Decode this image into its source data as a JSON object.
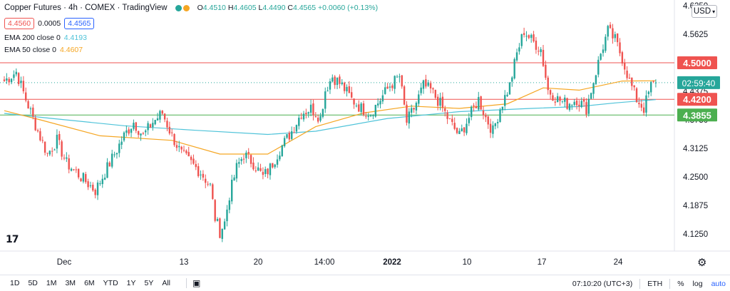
{
  "legend": {
    "symbol_title": "Copper Futures · 4h · COMEX · TradingView",
    "ohlc": {
      "o_label": "O",
      "o": "4.4510",
      "h_label": "H",
      "h": "4.4605",
      "l_label": "L",
      "l": "4.4490",
      "c_label": "C",
      "c": "4.4565",
      "change": "+0.0060 (+0.13%)"
    },
    "sell_price": "4.4560",
    "spread": "0.0005",
    "buy_price": "4.4565",
    "ema200": {
      "label": "EMA 200 close 0",
      "value": "4.4193",
      "color": "#4fc3d9"
    },
    "ema50": {
      "label": "EMA 50 close 0",
      "value": "4.4607",
      "color": "#f5a623"
    }
  },
  "currency_button": "USD",
  "toolbar": {
    "timeframes": [
      "1D",
      "5D",
      "1M",
      "3M",
      "6M",
      "YTD",
      "1Y",
      "5Y",
      "All"
    ],
    "clock": "07:10:20 (UTC+3)",
    "session": "ETH",
    "percent": "%",
    "log": "log",
    "auto": "auto"
  },
  "colors": {
    "up": "#26a69a",
    "down": "#ef5350",
    "resistance": "#ef5350",
    "support": "#4caf50",
    "current": "#26a69a"
  },
  "chart_data": {
    "type": "candlestick",
    "title": "Copper Futures · 4h · COMEX",
    "y_axis": {
      "ticks": [
        "4.1250",
        "4.1875",
        "4.2500",
        "4.3125",
        "4.3750",
        "4.4375",
        "4.5000",
        "4.5625",
        "4.6250"
      ],
      "ylim": [
        4.0875,
        4.6375
      ]
    },
    "x_axis": {
      "ticks": [
        "Dec",
        "13",
        "20",
        "14:00",
        "2022",
        "10",
        "17",
        "24"
      ],
      "bold_tick": "2022"
    },
    "levels": [
      {
        "label": "4.5000",
        "value": 4.5,
        "role": "resistance"
      },
      {
        "label": "4.4200",
        "value": 4.42,
        "role": "resistance"
      },
      {
        "label": "4.3855",
        "value": 4.3855,
        "role": "support"
      }
    ],
    "current_price": {
      "value": 4.4565,
      "countdown": "02:59:40"
    },
    "keypoints": [
      [
        0,
        4.46
      ],
      [
        5,
        4.48
      ],
      [
        9,
        4.42
      ],
      [
        14,
        4.35
      ],
      [
        18,
        4.3
      ],
      [
        22,
        4.33
      ],
      [
        26,
        4.28
      ],
      [
        30,
        4.26
      ],
      [
        34,
        4.24
      ],
      [
        38,
        4.22
      ],
      [
        42,
        4.26
      ],
      [
        46,
        4.3
      ],
      [
        50,
        4.34
      ],
      [
        54,
        4.37
      ],
      [
        58,
        4.34
      ],
      [
        62,
        4.37
      ],
      [
        66,
        4.39
      ],
      [
        70,
        4.34
      ],
      [
        74,
        4.3
      ],
      [
        78,
        4.28
      ],
      [
        82,
        4.26
      ],
      [
        86,
        4.23
      ],
      [
        88,
        4.16
      ],
      [
        90,
        4.13
      ],
      [
        92,
        4.15
      ],
      [
        94,
        4.21
      ],
      [
        97,
        4.27
      ],
      [
        100,
        4.3
      ],
      [
        104,
        4.28
      ],
      [
        108,
        4.25
      ],
      [
        111,
        4.27
      ],
      [
        115,
        4.31
      ],
      [
        120,
        4.35
      ],
      [
        124,
        4.39
      ],
      [
        128,
        4.4
      ],
      [
        132,
        4.38
      ],
      [
        134,
        4.44
      ],
      [
        137,
        4.47
      ],
      [
        141,
        4.45
      ],
      [
        145,
        4.42
      ],
      [
        149,
        4.4
      ],
      [
        153,
        4.39
      ],
      [
        157,
        4.42
      ],
      [
        161,
        4.45
      ],
      [
        165,
        4.47
      ],
      [
        168,
        4.37
      ],
      [
        171,
        4.4
      ],
      [
        175,
        4.45
      ],
      [
        178,
        4.44
      ],
      [
        182,
        4.41
      ],
      [
        186,
        4.37
      ],
      [
        190,
        4.34
      ],
      [
        194,
        4.38
      ],
      [
        198,
        4.42
      ],
      [
        201,
        4.38
      ],
      [
        204,
        4.35
      ],
      [
        207,
        4.4
      ],
      [
        211,
        4.45
      ],
      [
        214,
        4.52
      ],
      [
        217,
        4.57
      ],
      [
        220,
        4.55
      ],
      [
        224,
        4.53
      ],
      [
        227,
        4.44
      ],
      [
        231,
        4.42
      ],
      [
        235,
        4.41
      ],
      [
        239,
        4.42
      ],
      [
        243,
        4.4
      ],
      [
        246,
        4.46
      ],
      [
        249,
        4.52
      ],
      [
        252,
        4.57
      ],
      [
        255,
        4.55
      ],
      [
        258,
        4.51
      ],
      [
        261,
        4.46
      ],
      [
        264,
        4.42
      ],
      [
        267,
        4.4
      ],
      [
        270,
        4.45
      ],
      [
        272,
        4.4565
      ]
    ],
    "ema200_points": [
      [
        0,
        4.389
      ],
      [
        20,
        4.378
      ],
      [
        50,
        4.362
      ],
      [
        80,
        4.352
      ],
      [
        110,
        4.343
      ],
      [
        130,
        4.35
      ],
      [
        160,
        4.378
      ],
      [
        190,
        4.393
      ],
      [
        220,
        4.4
      ],
      [
        240,
        4.404
      ],
      [
        255,
        4.412
      ],
      [
        272,
        4.4193
      ]
    ],
    "ema50_points": [
      [
        0,
        4.395
      ],
      [
        15,
        4.375
      ],
      [
        40,
        4.34
      ],
      [
        70,
        4.33
      ],
      [
        90,
        4.3
      ],
      [
        110,
        4.3
      ],
      [
        130,
        4.36
      ],
      [
        150,
        4.39
      ],
      [
        170,
        4.405
      ],
      [
        190,
        4.4
      ],
      [
        210,
        4.41
      ],
      [
        225,
        4.445
      ],
      [
        240,
        4.44
      ],
      [
        258,
        4.46
      ],
      [
        272,
        4.4607
      ]
    ]
  }
}
